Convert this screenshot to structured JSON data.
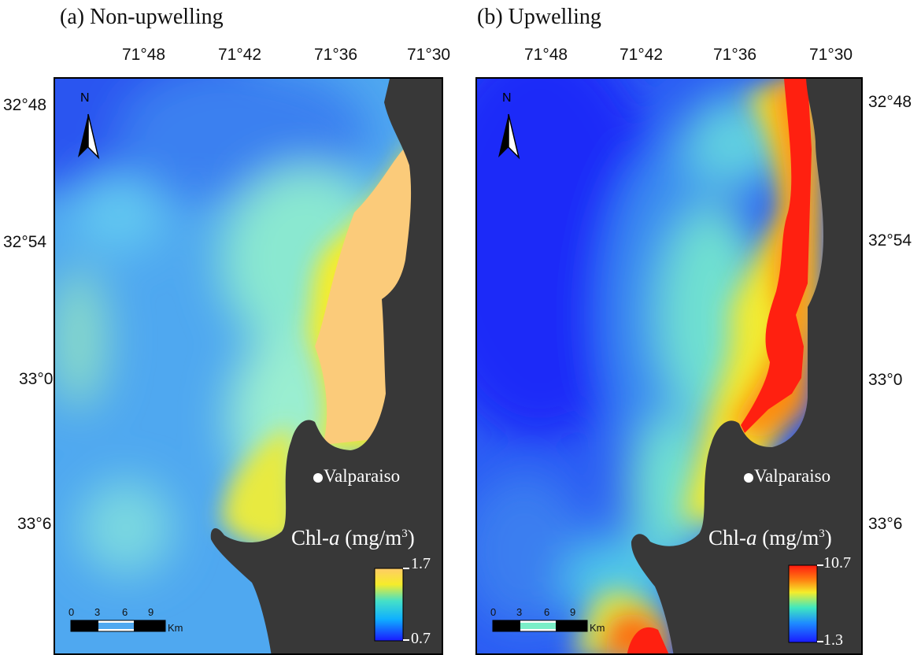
{
  "panels": {
    "a": {
      "title": "(a) Non-upwelling",
      "lon_ticks": [
        "71°48",
        "71°42",
        "71°36",
        "71°30"
      ],
      "lat_ticks": [
        "32°48",
        "32°54",
        "33°0",
        "33°6"
      ],
      "legend": {
        "title_prefix": "Chl-",
        "title_var": "a",
        "title_unit": " (mg/m",
        "title_sup": "3",
        "title_close": ")",
        "max": "1.7",
        "min": "0.7"
      },
      "city": "Valparaiso",
      "north": "N",
      "scale": {
        "ticks": [
          "0",
          "3",
          "6",
          "9"
        ],
        "unit": "Km"
      }
    },
    "b": {
      "title": "(b) Upwelling",
      "lon_ticks": [
        "71°48",
        "71°42",
        "71°36",
        "71°30"
      ],
      "lat_ticks": [
        "32°48",
        "32°54",
        "33°0",
        "33°6"
      ],
      "legend": {
        "title_prefix": "Chl-",
        "title_var": "a",
        "title_unit": " (mg/m",
        "title_sup": "3",
        "title_close": ")",
        "max": "10.7",
        "min": "1.3"
      },
      "city": "Valparaiso",
      "north": "N",
      "scale": {
        "ticks": [
          "0",
          "3",
          "6",
          "9"
        ],
        "unit": "Km"
      }
    }
  },
  "colors": {
    "land": "#383838",
    "colorbar_a": [
      "#1a1aff",
      "#0fb0ff",
      "#45e0c8",
      "#f6ec2a",
      "#ffcc66"
    ],
    "colorbar_b": [
      "#1a1aff",
      "#1e8cff",
      "#3fe8c0",
      "#f6ec2a",
      "#ff7a10",
      "#ff1a10"
    ]
  }
}
